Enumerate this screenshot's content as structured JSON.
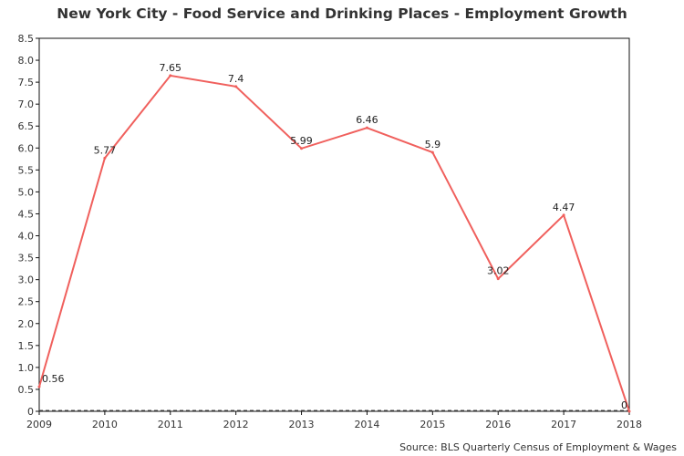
{
  "chart_data": {
    "type": "line",
    "title": "New York City - Food Service and Drinking Places - Employment Growth",
    "source": "Source: BLS Quarterly Census of Employment & Wages",
    "xlabel": "",
    "ylabel": "",
    "categories": [
      "2009",
      "2010",
      "2011",
      "2012",
      "2013",
      "2014",
      "2015",
      "2016",
      "2017",
      "2018"
    ],
    "series": [
      {
        "values": [
          0.56,
          5.77,
          7.65,
          7.4,
          5.99,
          6.46,
          5.9,
          3.02,
          4.47,
          0
        ],
        "data_labels": [
          "0.56",
          "5.77",
          "7.65",
          "7.4",
          "5.99",
          "6.46",
          "5.9",
          "3.02",
          "4.47",
          "0"
        ],
        "color": "#f0605d"
      }
    ],
    "ylim": [
      0,
      8.5
    ],
    "yticks": [
      "0",
      "0.5",
      "1.0",
      "1.5",
      "2.0",
      "2.5",
      "3.0",
      "3.5",
      "4.0",
      "4.5",
      "5.0",
      "5.5",
      "6.0",
      "6.5",
      "7.0",
      "7.5",
      "8.0",
      "8.5"
    ],
    "grid": false,
    "legend": "none"
  }
}
